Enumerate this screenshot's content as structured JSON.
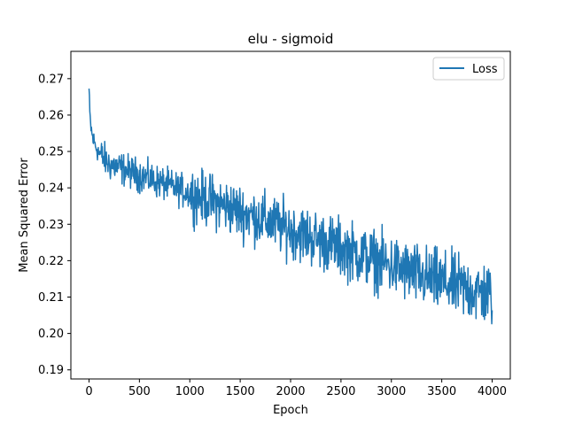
{
  "chart_data": {
    "type": "line",
    "title": "elu - sigmoid",
    "xlabel": "Epoch",
    "ylabel": "Mean Squared Error",
    "xlim": [
      -180,
      4180
    ],
    "ylim": [
      0.1875,
      0.2775
    ],
    "xticks": [
      0,
      500,
      1000,
      1500,
      2000,
      2500,
      3000,
      3500,
      4000
    ],
    "yticks": [
      0.19,
      0.2,
      0.21,
      0.22,
      0.23,
      0.24,
      0.25,
      0.26,
      0.27
    ],
    "xtick_labels": [
      "0",
      "500",
      "1000",
      "1500",
      "2000",
      "2500",
      "3000",
      "3500",
      "4000"
    ],
    "ytick_labels": [
      "0.19",
      "0.20",
      "0.21",
      "0.22",
      "0.23",
      "0.24",
      "0.25",
      "0.26",
      "0.27"
    ],
    "grid": false,
    "legend_position": "top-right",
    "series": [
      {
        "name": "Loss",
        "color": "#1f77b4",
        "x": [
          0,
          5,
          10,
          20,
          30,
          50,
          75,
          100,
          150,
          200,
          300,
          400,
          500,
          600,
          700,
          800,
          900,
          1000,
          1100,
          1200,
          1300,
          1400,
          1500,
          1600,
          1700,
          1800,
          1900,
          2000,
          2100,
          2200,
          2300,
          2400,
          2500,
          2600,
          2700,
          2800,
          2900,
          3000,
          3100,
          3200,
          3300,
          3400,
          3500,
          3600,
          3700,
          3800,
          3900,
          4000
        ],
        "y": [
          0.267,
          0.262,
          0.259,
          0.2565,
          0.2545,
          0.2525,
          0.251,
          0.2495,
          0.248,
          0.2465,
          0.2455,
          0.2445,
          0.2435,
          0.2425,
          0.2415,
          0.2405,
          0.2395,
          0.2385,
          0.2375,
          0.2365,
          0.2355,
          0.2345,
          0.2335,
          0.2325,
          0.2315,
          0.2305,
          0.2295,
          0.2285,
          0.2275,
          0.2265,
          0.2255,
          0.2245,
          0.2235,
          0.2225,
          0.2215,
          0.2205,
          0.2195,
          0.2185,
          0.2175,
          0.2165,
          0.2155,
          0.2148,
          0.214,
          0.2133,
          0.2126,
          0.2118,
          0.211,
          0.2105
        ]
      }
    ]
  }
}
